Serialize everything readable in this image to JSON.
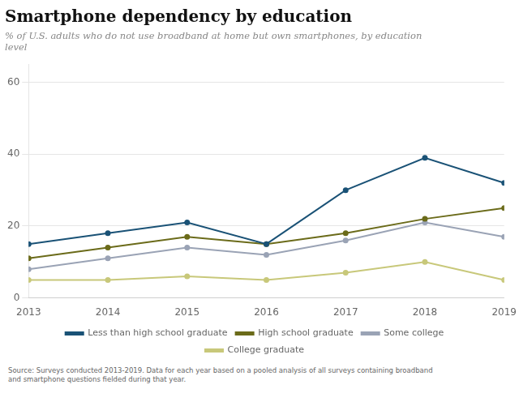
{
  "chart_data": {
    "type": "line",
    "title": "Smartphone dependency by education",
    "subtitle": "% of U.S. adults who do not use broadband at home but own smartphones, by education\nlevel",
    "footnote": "Source: Surveys conducted 2013-2019. Data for each year based on a pooled analysis of all surveys containing broadband\nand smartphone questions fielded during that year.",
    "x": [
      2013,
      2014,
      2015,
      2016,
      2017,
      2018,
      2019
    ],
    "series": [
      {
        "name": "Less than high school graduate",
        "color": "#1a5276",
        "values": [
          15,
          18,
          21,
          15,
          30,
          39,
          32
        ]
      },
      {
        "name": "High school graduate",
        "color": "#6b6b1a",
        "values": [
          11,
          14,
          17,
          15,
          18,
          22,
          25
        ]
      },
      {
        "name": "Some college",
        "color": "#9aa3b5",
        "values": [
          8,
          11,
          14,
          12,
          16,
          21,
          17
        ]
      },
      {
        "name": "College graduate",
        "color": "#c8c87a",
        "values": [
          5,
          5,
          6,
          5,
          7,
          10,
          5
        ]
      }
    ],
    "xlim": [
      2013,
      2019
    ],
    "xticks": [
      2013,
      2014,
      2015,
      2016,
      2017,
      2018,
      2019
    ],
    "ylim": [
      0,
      65
    ],
    "yticks": [
      0,
      20,
      40,
      60
    ],
    "grid": true,
    "legend": "bottom"
  }
}
